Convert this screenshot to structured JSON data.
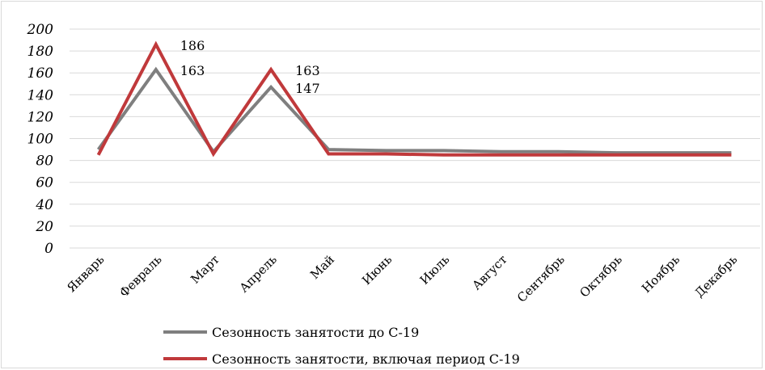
{
  "chart_data": {
    "type": "line",
    "categories": [
      "Январь",
      "Февраль",
      "Март",
      "Апрель",
      "Май",
      "Июнь",
      "Июль",
      "Август",
      "Сентябрь",
      "Октябрь",
      "Ноябрь",
      "Декабрь"
    ],
    "ylim": [
      0,
      200
    ],
    "yticks": [
      "200",
      "180",
      "160",
      "140",
      "120",
      "100",
      "80",
      "60",
      "40",
      "20",
      "0"
    ],
    "grid": true,
    "legend_position": "bottom",
    "series": [
      {
        "name": "Сезонность занятости до С-19",
        "color": "#7f7f7f",
        "values": [
          90,
          163,
          88,
          147,
          90,
          89,
          89,
          88,
          88,
          87,
          87,
          87
        ]
      },
      {
        "name": "Сезонность занятости, включая период С-19",
        "color": "#c0393b",
        "values": [
          85,
          186,
          86,
          163,
          86,
          86,
          85,
          85,
          85,
          85,
          85,
          85
        ]
      }
    ],
    "data_labels": [
      {
        "series": 1,
        "index": 1,
        "text": "186"
      },
      {
        "series": 0,
        "index": 1,
        "text": "163"
      },
      {
        "series": 1,
        "index": 3,
        "text": "163"
      },
      {
        "series": 0,
        "index": 3,
        "text": "147"
      }
    ]
  }
}
